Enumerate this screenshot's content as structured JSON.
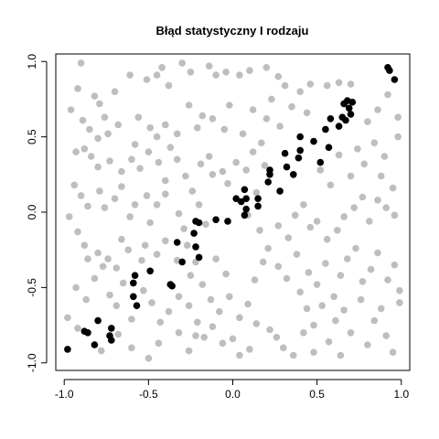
{
  "chart_data": {
    "type": "scatter",
    "title": "Błąd statystyczny I rodzaju",
    "xlabel": "",
    "ylabel": "",
    "xlim": [
      -1.05,
      1.05
    ],
    "ylim": [
      -1.05,
      1.05
    ],
    "x_ticks": [
      -1.0,
      -0.5,
      0.0,
      0.5,
      1.0
    ],
    "x_tick_labels": [
      "-1.0",
      "-0.5",
      "0.0",
      "0.5",
      "1.0"
    ],
    "y_ticks": [
      -1.0,
      -0.5,
      0.0,
      0.5,
      1.0
    ],
    "y_tick_labels": [
      "-1.0",
      "-0.5",
      "0.0",
      "0.5",
      "1.0"
    ],
    "grid": false,
    "colors": {
      "background_points": "#bebebe",
      "highlighted_points": "#000000"
    },
    "series": [
      {
        "color": "#bebebe",
        "points": [
          [
            -0.96,
            0.68
          ],
          [
            -0.9,
            0.99
          ],
          [
            -0.92,
            0.82
          ],
          [
            -0.82,
            0.77
          ],
          [
            -0.79,
            0.72
          ],
          [
            -0.76,
            0.63
          ],
          [
            -0.7,
            0.8
          ],
          [
            -0.61,
            0.91
          ],
          [
            -0.51,
            0.88
          ],
          [
            -0.45,
            0.91
          ],
          [
            -0.42,
            0.96
          ],
          [
            -0.38,
            0.84
          ],
          [
            -0.3,
            0.99
          ],
          [
            -0.25,
            0.93
          ],
          [
            -0.14,
            0.97
          ],
          [
            -0.1,
            0.91
          ],
          [
            -0.04,
            0.93
          ],
          [
            0.04,
            0.91
          ],
          [
            0.1,
            0.94
          ],
          [
            0.2,
            0.96
          ],
          [
            0.27,
            0.9
          ],
          [
            0.31,
            0.84
          ],
          [
            0.4,
            0.8
          ],
          [
            0.46,
            0.85
          ],
          [
            0.56,
            0.84
          ],
          [
            0.63,
            0.86
          ],
          [
            0.7,
            0.85
          ],
          [
            -0.89,
            0.61
          ],
          [
            -0.85,
            0.55
          ],
          [
            -0.8,
            0.49
          ],
          [
            -0.74,
            0.52
          ],
          [
            -0.68,
            0.58
          ],
          [
            -0.58,
            0.45
          ],
          [
            -0.56,
            0.63
          ],
          [
            -0.49,
            0.56
          ],
          [
            -0.45,
            0.5
          ],
          [
            -0.4,
            0.58
          ],
          [
            -0.37,
            0.43
          ],
          [
            -0.33,
            0.52
          ],
          [
            -0.26,
            0.71
          ],
          [
            -0.21,
            0.56
          ],
          [
            -0.18,
            0.64
          ],
          [
            -0.12,
            0.62
          ],
          [
            -0.05,
            0.55
          ],
          [
            -0.02,
            0.71
          ],
          [
            0.06,
            0.52
          ],
          [
            0.12,
            0.68
          ],
          [
            0.2,
            0.62
          ],
          [
            0.23,
            0.75
          ],
          [
            0.28,
            0.57
          ],
          [
            0.35,
            0.7
          ],
          [
            0.44,
            0.66
          ],
          [
            -0.93,
            0.4
          ],
          [
            -0.88,
            0.42
          ],
          [
            -0.84,
            0.37
          ],
          [
            -0.8,
            0.3
          ],
          [
            -0.73,
            0.34
          ],
          [
            -0.66,
            0.27
          ],
          [
            -0.6,
            0.35
          ],
          [
            -0.55,
            0.29
          ],
          [
            -0.5,
            0.4
          ],
          [
            -0.44,
            0.33
          ],
          [
            -0.4,
            0.21
          ],
          [
            -0.33,
            0.35
          ],
          [
            -0.28,
            0.24
          ],
          [
            -0.24,
            0.14
          ],
          [
            -0.19,
            0.32
          ],
          [
            -0.14,
            0.37
          ],
          [
            -0.12,
            0.25
          ],
          [
            -0.06,
            0.27
          ],
          [
            -0.03,
            0.19
          ],
          [
            0.02,
            0.33
          ],
          [
            0.08,
            0.28
          ],
          [
            0.12,
            0.4
          ],
          [
            0.17,
            0.46
          ],
          [
            0.19,
            0.31
          ],
          [
            -0.94,
            0.18
          ],
          [
            -0.9,
            0.11
          ],
          [
            -0.86,
            0.04
          ],
          [
            -0.79,
            0.14
          ],
          [
            -0.76,
            0.03
          ],
          [
            -0.7,
            0.09
          ],
          [
            -0.66,
            0.17
          ],
          [
            -0.61,
            -0.03
          ],
          [
            -0.58,
            0.05
          ],
          [
            -0.51,
            0.11
          ],
          [
            -0.49,
            -0.07
          ],
          [
            -0.45,
            0.05
          ],
          [
            -0.4,
            0.12
          ],
          [
            -0.32,
            -0.01
          ],
          [
            -0.29,
            -0.11
          ],
          [
            -0.2,
            0.05
          ],
          [
            -0.16,
            -0.08
          ],
          [
            -0.97,
            -0.03
          ],
          [
            -0.92,
            -0.13
          ],
          [
            -0.88,
            -0.22
          ],
          [
            -0.86,
            -0.31
          ],
          [
            -0.8,
            -0.27
          ],
          [
            -0.74,
            -0.31
          ],
          [
            -0.69,
            -0.37
          ],
          [
            -0.66,
            -0.18
          ],
          [
            -0.62,
            -0.25
          ],
          [
            -0.54,
            -0.32
          ],
          [
            -0.52,
            -0.22
          ],
          [
            -0.45,
            -0.28
          ],
          [
            -0.4,
            -0.19
          ],
          [
            -0.33,
            -0.32
          ],
          [
            -0.27,
            -0.22
          ],
          [
            -0.25,
            -0.42
          ],
          [
            -0.22,
            -0.33
          ],
          [
            -0.18,
            -0.48
          ],
          [
            -0.1,
            -0.31
          ],
          [
            -0.04,
            -0.41
          ],
          [
            -0.93,
            -0.5
          ],
          [
            -0.87,
            -0.58
          ],
          [
            -0.82,
            -0.44
          ],
          [
            -0.77,
            -0.36
          ],
          [
            -0.73,
            -0.55
          ],
          [
            -0.69,
            -0.62
          ],
          [
            -0.65,
            -0.47
          ],
          [
            -0.6,
            -0.71
          ],
          [
            -0.53,
            -0.52
          ],
          [
            -0.48,
            -0.6
          ],
          [
            -0.43,
            -0.73
          ],
          [
            -0.38,
            -0.66
          ],
          [
            -0.32,
            -0.56
          ],
          [
            -0.26,
            -0.62
          ],
          [
            -0.21,
            -0.73
          ],
          [
            -0.17,
            -0.83
          ],
          [
            -0.13,
            -0.58
          ],
          [
            -0.08,
            -0.66
          ],
          [
            -0.02,
            -0.56
          ],
          [
            0.04,
            -0.7
          ],
          [
            0.09,
            -0.61
          ],
          [
            0.13,
            -0.45
          ],
          [
            0.18,
            -0.33
          ],
          [
            -0.98,
            -0.7
          ],
          [
            -0.92,
            -0.77
          ],
          [
            -0.78,
            -0.92
          ],
          [
            -0.68,
            -0.81
          ],
          [
            -0.6,
            -0.9
          ],
          [
            -0.5,
            -0.97
          ],
          [
            -0.44,
            -0.87
          ],
          [
            -0.32,
            -0.8
          ],
          [
            -0.26,
            -0.92
          ],
          [
            -0.22,
            -0.82
          ],
          [
            -0.12,
            -0.76
          ],
          [
            -0.06,
            -0.87
          ],
          [
            0.0,
            -0.84
          ],
          [
            0.04,
            -0.95
          ],
          [
            0.1,
            -0.91
          ],
          [
            0.14,
            -0.74
          ],
          [
            0.22,
            -0.78
          ],
          [
            0.26,
            -0.83
          ],
          [
            0.3,
            -0.9
          ],
          [
            0.36,
            -0.95
          ],
          [
            0.42,
            -0.8
          ],
          [
            0.09,
            -0.02
          ],
          [
            0.14,
            0.13
          ],
          [
            0.16,
            -0.12
          ],
          [
            0.21,
            -0.24
          ],
          [
            0.27,
            -0.09
          ],
          [
            0.33,
            -0.17
          ],
          [
            0.37,
            -0.02
          ],
          [
            0.42,
            0.05
          ],
          [
            0.46,
            -0.1
          ],
          [
            0.5,
            -0.06
          ],
          [
            0.56,
            -0.18
          ],
          [
            0.62,
            -0.12
          ],
          [
            0.66,
            -0.03
          ],
          [
            0.72,
            0.03
          ],
          [
            0.77,
            0.1
          ],
          [
            0.81,
            -0.06
          ],
          [
            0.86,
            0.08
          ],
          [
            0.91,
            0.03
          ],
          [
            0.96,
            -0.02
          ],
          [
            0.27,
            -0.36
          ],
          [
            0.32,
            -0.44
          ],
          [
            0.38,
            -0.28
          ],
          [
            0.4,
            -0.53
          ],
          [
            0.45,
            -0.4
          ],
          [
            0.5,
            -0.48
          ],
          [
            0.55,
            -0.34
          ],
          [
            0.6,
            -0.56
          ],
          [
            0.64,
            -0.42
          ],
          [
            0.68,
            -0.31
          ],
          [
            0.73,
            -0.24
          ],
          [
            0.77,
            -0.46
          ],
          [
            0.82,
            -0.38
          ],
          [
            0.86,
            -0.27
          ],
          [
            0.92,
            -0.45
          ],
          [
            0.96,
            -0.35
          ],
          [
            0.99,
            -0.52
          ],
          [
            0.44,
            -0.64
          ],
          [
            0.48,
            -0.75
          ],
          [
            0.53,
            -0.62
          ],
          [
            0.57,
            -0.86
          ],
          [
            0.61,
            -0.72
          ],
          [
            0.66,
            -0.65
          ],
          [
            0.7,
            -0.8
          ],
          [
            0.76,
            -0.58
          ],
          [
            0.8,
            -0.88
          ],
          [
            0.84,
            -0.72
          ],
          [
            0.88,
            -0.64
          ],
          [
            0.91,
            -0.82
          ],
          [
            0.95,
            -0.93
          ],
          [
            0.99,
            -0.6
          ],
          [
            0.48,
            -0.93
          ],
          [
            0.64,
            -0.95
          ],
          [
            0.52,
            0.28
          ],
          [
            0.58,
            0.18
          ],
          [
            0.63,
            0.38
          ],
          [
            0.7,
            0.24
          ],
          [
            0.74,
            0.42
          ],
          [
            0.78,
            0.32
          ],
          [
            0.84,
            0.46
          ],
          [
            0.88,
            0.24
          ],
          [
            0.9,
            0.37
          ],
          [
            0.95,
            0.16
          ],
          [
            0.98,
            0.5
          ],
          [
            0.8,
            0.6
          ],
          [
            0.86,
            0.68
          ],
          [
            0.92,
            0.78
          ],
          [
            0.98,
            0.63
          ]
        ]
      },
      {
        "color": "#000000",
        "points": [
          [
            -0.98,
            -0.91
          ],
          [
            -0.88,
            -0.79
          ],
          [
            -0.86,
            -0.8
          ],
          [
            -0.82,
            -0.88
          ],
          [
            -0.8,
            -0.72
          ],
          [
            -0.73,
            -0.82
          ],
          [
            -0.72,
            -0.85
          ],
          [
            -0.72,
            -0.77
          ],
          [
            -0.59,
            -0.47
          ],
          [
            -0.59,
            -0.56
          ],
          [
            -0.58,
            -0.42
          ],
          [
            -0.57,
            -0.62
          ],
          [
            -0.49,
            -0.39
          ],
          [
            -0.37,
            -0.48
          ],
          [
            -0.36,
            -0.49
          ],
          [
            -0.33,
            -0.2
          ],
          [
            -0.3,
            -0.33
          ],
          [
            -0.23,
            -0.14
          ],
          [
            -0.22,
            -0.06
          ],
          [
            -0.22,
            -0.23
          ],
          [
            -0.2,
            -0.3
          ],
          [
            -0.2,
            -0.07
          ],
          [
            -0.1,
            -0.05
          ],
          [
            -0.03,
            -0.06
          ],
          [
            0.02,
            0.09
          ],
          [
            0.05,
            0.07
          ],
          [
            0.07,
            -0.02
          ],
          [
            0.07,
            0.15
          ],
          [
            0.08,
            0.09
          ],
          [
            0.08,
            0.02
          ],
          [
            0.15,
            0.09
          ],
          [
            0.15,
            0.04
          ],
          [
            0.21,
            0.2
          ],
          [
            0.22,
            0.25
          ],
          [
            0.22,
            0.28
          ],
          [
            0.28,
            0.14
          ],
          [
            0.31,
            0.39
          ],
          [
            0.32,
            0.3
          ],
          [
            0.36,
            0.25
          ],
          [
            0.39,
            0.36
          ],
          [
            0.4,
            0.5
          ],
          [
            0.4,
            0.41
          ],
          [
            0.48,
            0.47
          ],
          [
            0.52,
            0.33
          ],
          [
            0.55,
            0.55
          ],
          [
            0.57,
            0.43
          ],
          [
            0.58,
            0.62
          ],
          [
            0.63,
            0.57
          ],
          [
            0.65,
            0.63
          ],
          [
            0.66,
            0.72
          ],
          [
            0.67,
            0.61
          ],
          [
            0.68,
            0.74
          ],
          [
            0.69,
            0.69
          ],
          [
            0.7,
            0.65
          ],
          [
            0.71,
            0.73
          ],
          [
            0.92,
            0.96
          ],
          [
            0.93,
            0.94
          ],
          [
            0.96,
            0.88
          ]
        ]
      }
    ]
  }
}
